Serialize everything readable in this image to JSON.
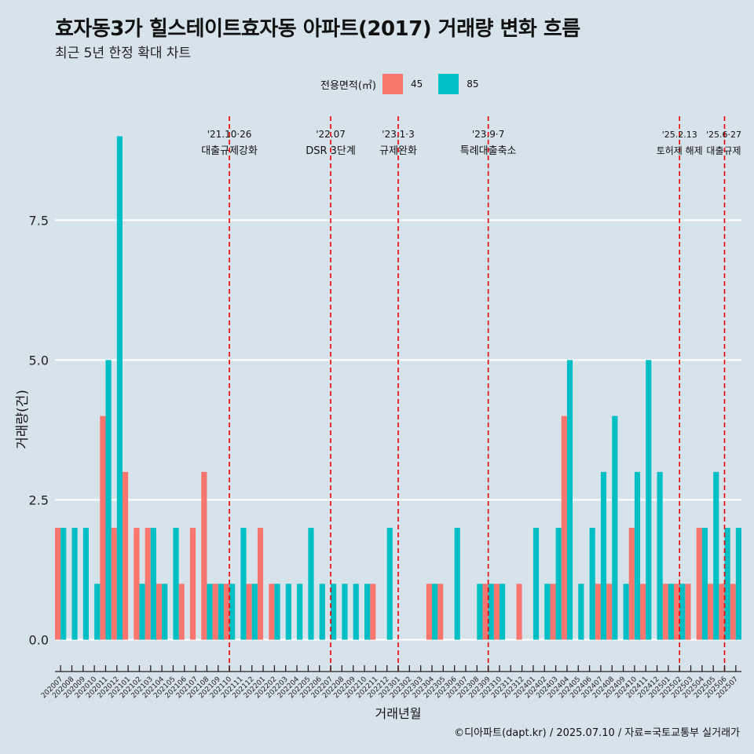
{
  "title": "효자동3가 힐스테이트효자동 아파트(2017) 거래량 변화 흐름",
  "subtitle": "최근 5년 한정 확대 차트",
  "caption": "©디아파트(dapt.kr) / 2025.07.10 / 자료=국토교통부 실거래가",
  "legend": {
    "title": "전용면적(㎡)",
    "items": [
      {
        "label": "45",
        "color": "#f8766d"
      },
      {
        "label": "85",
        "color": "#00bfc4"
      }
    ]
  },
  "chart_data": {
    "type": "bar",
    "xlabel": "거래년월",
    "ylabel": "거래량(건)",
    "ylim": [
      -0.4,
      9.4
    ],
    "yticks": [
      0.0,
      2.5,
      5.0,
      7.5
    ],
    "ytick_labels": [
      "0.0",
      "2.5",
      "5.0",
      "7.5"
    ],
    "grid": true,
    "categories": [
      "202007",
      "202008",
      "202009",
      "202010",
      "202011",
      "202012",
      "202101",
      "202102",
      "202103",
      "202104",
      "202105",
      "202106",
      "202107",
      "202108",
      "202109",
      "202110",
      "202111",
      "202112",
      "202201",
      "202202",
      "202203",
      "202204",
      "202205",
      "202206",
      "202207",
      "202208",
      "202209",
      "202210",
      "202211",
      "202212",
      "202301",
      "202302",
      "202303",
      "202304",
      "202305",
      "202306",
      "202307",
      "202308",
      "202309",
      "202310",
      "202311",
      "202312",
      "202401",
      "202402",
      "202403",
      "202404",
      "202405",
      "202406",
      "202407",
      "202408",
      "202409",
      "202410",
      "202411",
      "202412",
      "202501",
      "202502",
      "202503",
      "202504",
      "202505",
      "202506",
      "202507"
    ],
    "series": [
      {
        "name": "45",
        "color": "#f8766d",
        "values": [
          2,
          0,
          0,
          0,
          4,
          2,
          3,
          2,
          2,
          1,
          0,
          1,
          2,
          3,
          1,
          1,
          0,
          1,
          2,
          1,
          0,
          0,
          0,
          0,
          0,
          0,
          0,
          0,
          1,
          0,
          0,
          0,
          0,
          1,
          1,
          0,
          0,
          0,
          1,
          1,
          0,
          1,
          0,
          0,
          1,
          4,
          0,
          0,
          1,
          1,
          0,
          2,
          1,
          0,
          1,
          1,
          1,
          2,
          1,
          1,
          1
        ]
      },
      {
        "name": "85",
        "color": "#00bfc4",
        "values": [
          2,
          2,
          2,
          1,
          5,
          9,
          0,
          1,
          2,
          1,
          2,
          0,
          0,
          1,
          1,
          1,
          2,
          1,
          0,
          1,
          1,
          1,
          2,
          1,
          1,
          1,
          1,
          1,
          0,
          2,
          0,
          0,
          0,
          1,
          0,
          2,
          0,
          1,
          1,
          1,
          0,
          0,
          2,
          1,
          2,
          5,
          1,
          2,
          3,
          4,
          1,
          3,
          5,
          3,
          1,
          1,
          0,
          2,
          3,
          2,
          2
        ]
      }
    ],
    "events": [
      {
        "date": "'21.10·26",
        "label": "대출규제강화",
        "position": 15.5
      },
      {
        "date": "'22.07",
        "label": "DSR 3단계",
        "position": 24.5
      },
      {
        "date": "'23.1·3",
        "label": "규제완화",
        "position": 30.5
      },
      {
        "date": "'23.9·7",
        "label": "특례대출축소",
        "position": 38.5
      },
      {
        "date": "'25.2.13",
        "label": "토허제 해제",
        "position": 55.5
      },
      {
        "date": "'25.6·27",
        "label": "대출규제",
        "position": 59.5
      }
    ]
  }
}
